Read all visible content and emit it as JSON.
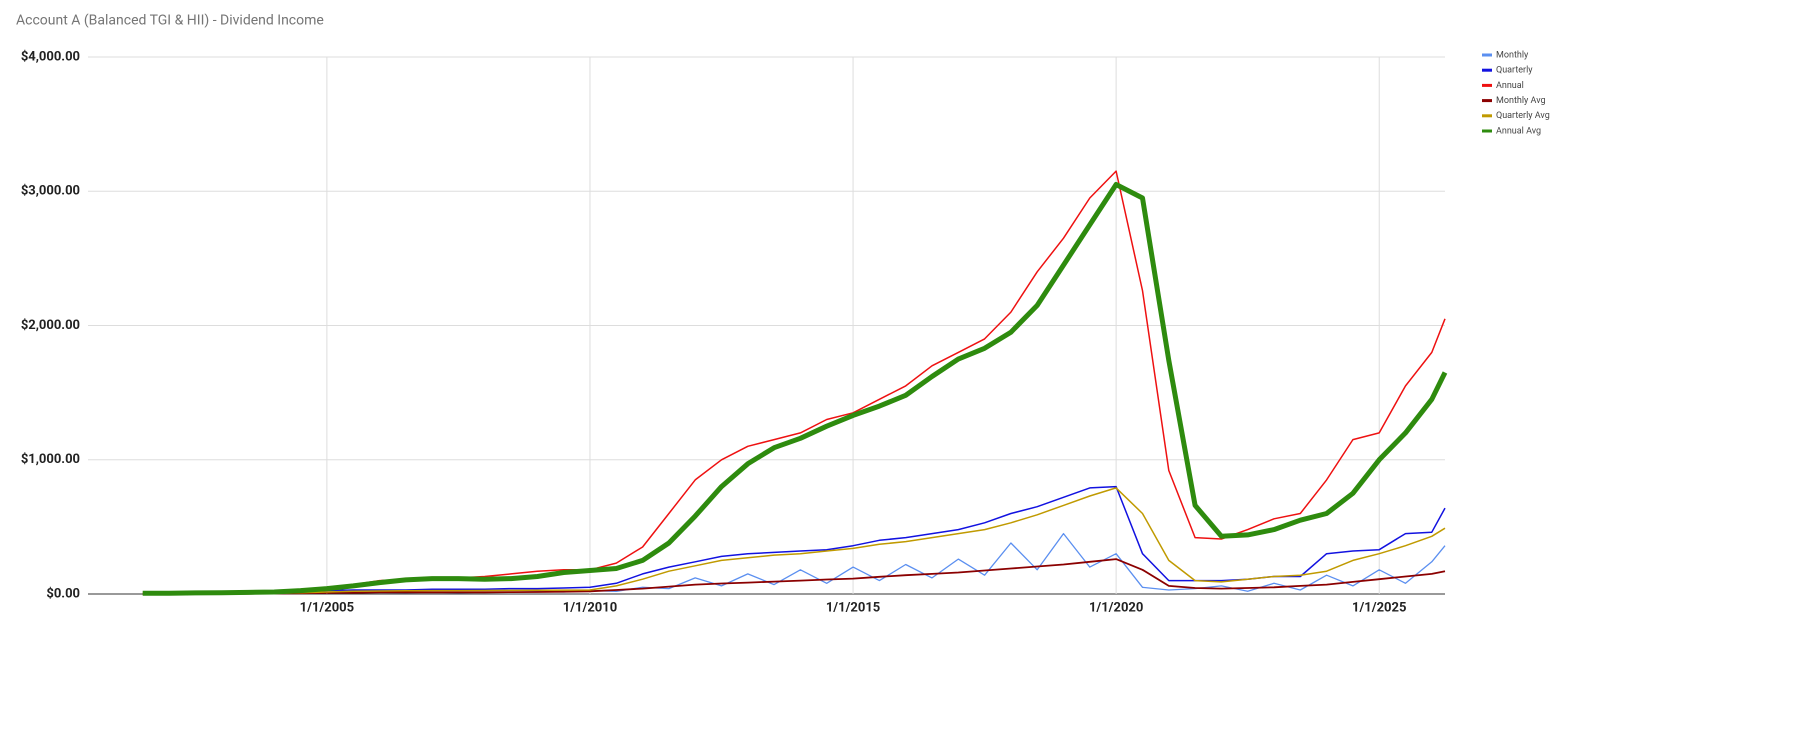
{
  "chart_data": {
    "type": "line",
    "title": "Account A (Balanced TGI & HII) - Dividend Income",
    "x": [
      2001.5,
      2002,
      2002.5,
      2003,
      2003.5,
      2004,
      2004.5,
      2005,
      2005.5,
      2006,
      2006.5,
      2007,
      2007.5,
      2008,
      2008.5,
      2009,
      2009.5,
      2010,
      2010.5,
      2011,
      2011.5,
      2012,
      2012.5,
      2013,
      2013.5,
      2014,
      2014.5,
      2015,
      2015.5,
      2016,
      2016.5,
      2017,
      2017.5,
      2018,
      2018.5,
      2019,
      2019.5,
      2020,
      2020.5,
      2021,
      2021.5,
      2022,
      2022.5,
      2023,
      2023.5,
      2024,
      2024.5,
      2025,
      2025.5,
      2026,
      2026.25
    ],
    "xlim": [
      2000.46,
      2026.25
    ],
    "xticks": [
      {
        "value": 2005,
        "label": "1/1/2005"
      },
      {
        "value": 2010,
        "label": "1/1/2010"
      },
      {
        "value": 2015,
        "label": "1/1/2015"
      },
      {
        "value": 2020,
        "label": "1/1/2020"
      },
      {
        "value": 2025,
        "label": "1/1/2025"
      }
    ],
    "ylim": [
      0,
      4000
    ],
    "yticks": [
      {
        "value": 0,
        "label": "$0.00"
      },
      {
        "value": 1000,
        "label": "$1,000.00"
      },
      {
        "value": 2000,
        "label": "$2,000.00"
      },
      {
        "value": 3000,
        "label": "$3,000.00"
      },
      {
        "value": 4000,
        "label": "$4,000.00"
      }
    ],
    "grid": true,
    "legend": "right",
    "series": [
      {
        "name": "Monthly",
        "color": "#5b8ff0",
        "width": 1.3,
        "values": [
          0,
          0,
          0,
          0,
          2,
          5,
          5,
          10,
          8,
          12,
          10,
          14,
          10,
          14,
          12,
          18,
          15,
          25,
          20,
          50,
          40,
          120,
          60,
          150,
          70,
          180,
          80,
          200,
          100,
          220,
          120,
          260,
          140,
          380,
          180,
          450,
          200,
          300,
          50,
          30,
          40,
          60,
          20,
          80,
          30,
          140,
          60,
          180,
          80,
          240,
          360
        ]
      },
      {
        "name": "Quarterly",
        "color": "#1212e0",
        "width": 1.5,
        "values": [
          0,
          0,
          0,
          0,
          5,
          10,
          15,
          25,
          30,
          30,
          30,
          35,
          35,
          35,
          40,
          40,
          45,
          50,
          80,
          150,
          200,
          240,
          280,
          300,
          310,
          320,
          330,
          360,
          400,
          420,
          450,
          480,
          530,
          600,
          650,
          720,
          790,
          800,
          300,
          100,
          100,
          100,
          110,
          130,
          130,
          300,
          320,
          330,
          450,
          460,
          640
        ]
      },
      {
        "name": "Annual",
        "color": "#ee1111",
        "width": 1.5,
        "values": [
          5,
          8,
          10,
          12,
          15,
          20,
          30,
          50,
          70,
          100,
          105,
          110,
          120,
          130,
          150,
          170,
          180,
          180,
          230,
          350,
          600,
          850,
          1000,
          1100,
          1150,
          1200,
          1300,
          1350,
          1450,
          1550,
          1700,
          1800,
          1900,
          2100,
          2400,
          2650,
          2950,
          3150,
          2260,
          920,
          420,
          410,
          480,
          560,
          600,
          850,
          1150,
          1200,
          1550,
          1800,
          2050
        ]
      },
      {
        "name": "Monthly Avg",
        "color": "#8b0000",
        "width": 1.8,
        "values": [
          0,
          0,
          0,
          0,
          2,
          4,
          6,
          8,
          10,
          12,
          12,
          12,
          12,
          13,
          14,
          15,
          17,
          20,
          30,
          40,
          55,
          70,
          78,
          85,
          92,
          100,
          108,
          115,
          128,
          140,
          150,
          160,
          175,
          190,
          205,
          220,
          240,
          260,
          180,
          60,
          45,
          40,
          45,
          50,
          60,
          70,
          90,
          110,
          130,
          150,
          170
        ]
      },
      {
        "name": "Quarterly Avg",
        "color": "#c09a00",
        "width": 1.5,
        "values": [
          0,
          0,
          0,
          0,
          3,
          6,
          10,
          15,
          20,
          22,
          24,
          25,
          25,
          26,
          27,
          28,
          29,
          30,
          60,
          110,
          170,
          210,
          250,
          270,
          290,
          300,
          320,
          340,
          370,
          390,
          420,
          450,
          480,
          530,
          590,
          660,
          730,
          790,
          600,
          250,
          100,
          90,
          110,
          130,
          140,
          170,
          250,
          300,
          360,
          430,
          490
        ]
      },
      {
        "name": "Annual Avg",
        "color": "#2e8b0e",
        "width": 5,
        "values": [
          5,
          6,
          8,
          10,
          12,
          15,
          25,
          40,
          60,
          85,
          105,
          115,
          115,
          110,
          115,
          130,
          160,
          175,
          190,
          250,
          380,
          580,
          800,
          970,
          1090,
          1160,
          1250,
          1330,
          1400,
          1480,
          1620,
          1750,
          1830,
          1950,
          2150,
          2450,
          2750,
          3050,
          2950,
          1740,
          660,
          430,
          440,
          480,
          550,
          600,
          750,
          1000,
          1200,
          1450,
          1650
        ]
      }
    ]
  }
}
